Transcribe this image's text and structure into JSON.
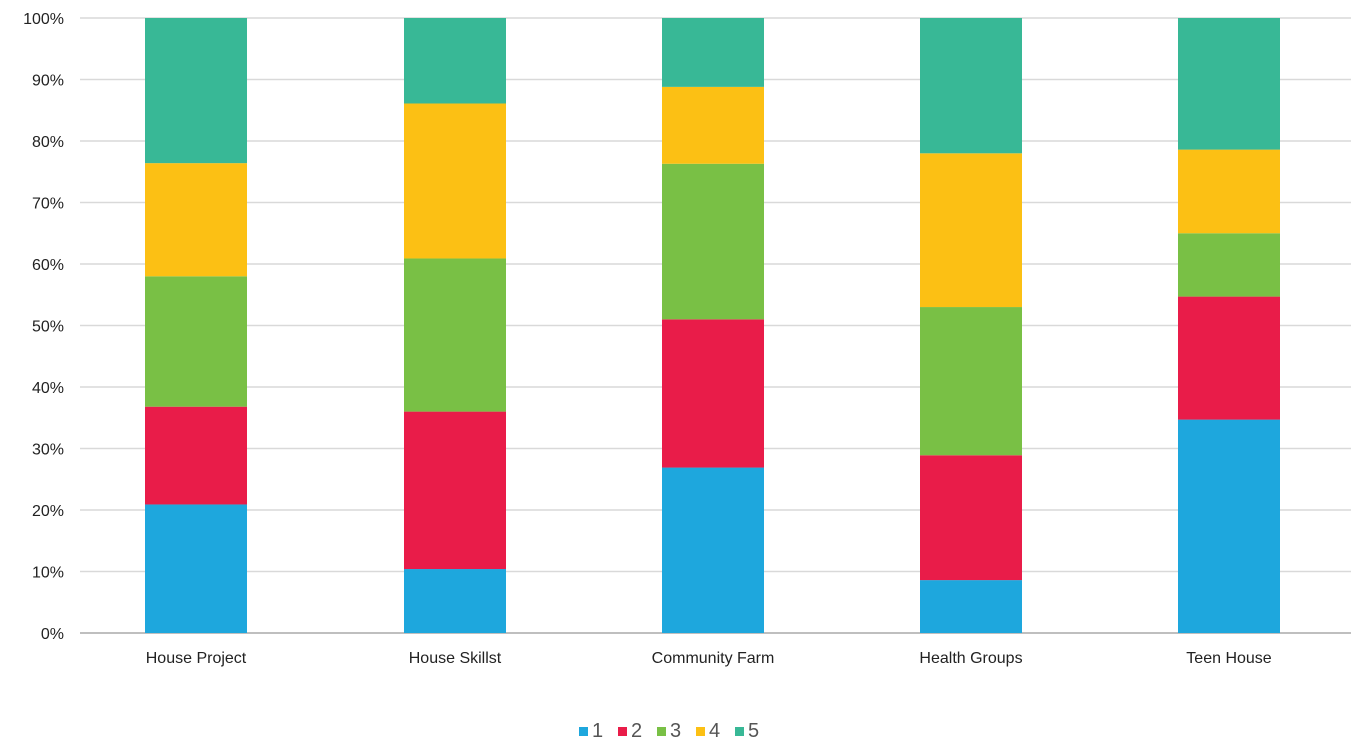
{
  "colors": {
    "gridline": "#d9d9d9",
    "axis_line": "#bfbfbf"
  },
  "chart_data": {
    "type": "bar",
    "stacked": true,
    "orientation": "vertical",
    "categories": [
      "House Project",
      "House Skillst",
      "Community Farm",
      "Health Groups",
      "Teen House"
    ],
    "series": [
      {
        "name": "1",
        "color": "#1ea7dd",
        "values": [
          20.9,
          10.4,
          26.9,
          8.6,
          34.7
        ]
      },
      {
        "name": "2",
        "color": "#e91c49",
        "values": [
          15.9,
          25.6,
          24.1,
          20.3,
          20.0
        ]
      },
      {
        "name": "3",
        "color": "#79c045",
        "values": [
          21.2,
          24.9,
          25.3,
          24.1,
          10.3
        ]
      },
      {
        "name": "4",
        "color": "#fcc014",
        "values": [
          18.4,
          25.2,
          12.5,
          25.0,
          13.6
        ]
      },
      {
        "name": "5",
        "color": "#38b896",
        "values": [
          23.6,
          13.9,
          11.2,
          22.0,
          21.4
        ]
      }
    ],
    "yticks": [
      "0%",
      "10%",
      "20%",
      "30%",
      "40%",
      "50%",
      "60%",
      "70%",
      "80%",
      "90%",
      "100%"
    ],
    "ylim": [
      0,
      100
    ],
    "grid": true,
    "legend_position": "bottom-center",
    "title": "",
    "xlabel": "",
    "ylabel": ""
  }
}
